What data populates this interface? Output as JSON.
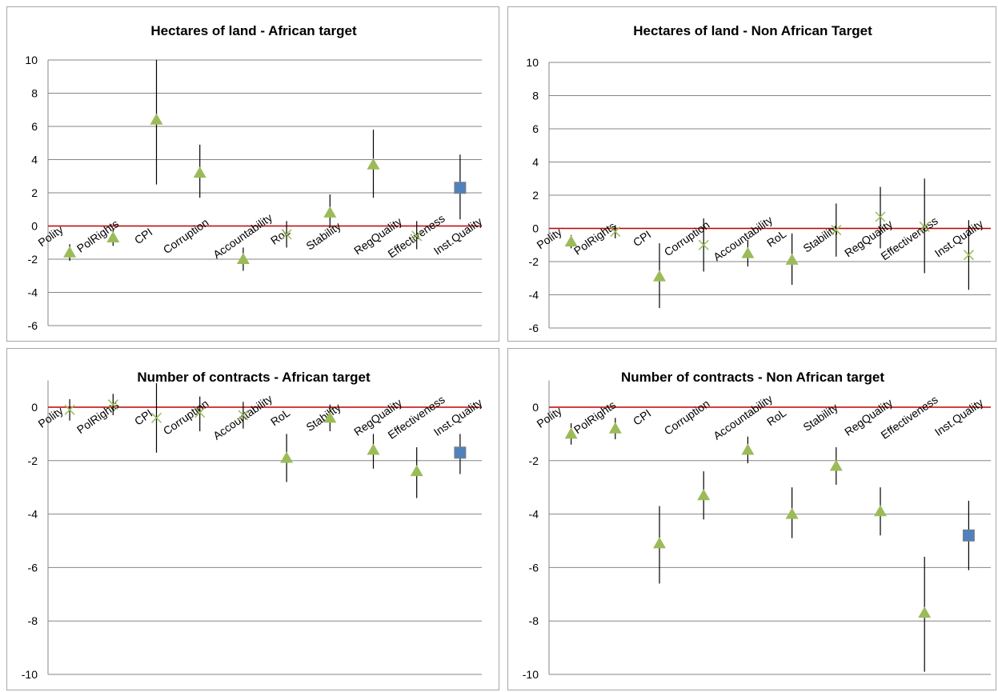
{
  "colors": {
    "triangle": "#9bbb59",
    "cross": "#9bbb59",
    "square": "#4f81bd",
    "square_edge": "#7f7f7f",
    "zero_line": "#c00000",
    "grid": "#868686",
    "errorbar": "#000000"
  },
  "chart_data": [
    {
      "type": "scatter",
      "title": "Hectares of land - African target",
      "ylim": [
        -6,
        10
      ],
      "yticks": [
        10,
        8,
        6,
        4,
        2,
        0,
        -2,
        -4,
        -6
      ],
      "grid": true,
      "categories": [
        "Polity",
        "PolRights",
        "CPI",
        "Corruption",
        "Accountability",
        "RoL",
        "Stability",
        "RegQuality",
        "Effectiveness",
        "Inst.Quality"
      ],
      "values": [
        -1.6,
        -0.7,
        6.4,
        3.2,
        -2.0,
        -0.5,
        0.8,
        3.7,
        -0.6,
        2.3
      ],
      "lower": [
        -2.1,
        -1.2,
        2.5,
        1.7,
        -2.7,
        -1.3,
        -0.1,
        1.7,
        -1.4,
        0.4
      ],
      "upper": [
        -1.1,
        -0.2,
        10.0,
        4.9,
        -1.3,
        0.3,
        1.9,
        5.8,
        0.3,
        4.3
      ],
      "markers": [
        "triangle",
        "triangle",
        "triangle",
        "triangle",
        "triangle",
        "cross",
        "triangle",
        "triangle",
        "cross",
        "square"
      ]
    },
    {
      "type": "scatter",
      "title": "Hectares of land - Non African Target",
      "ylim": [
        -6,
        10
      ],
      "yticks": [
        10,
        8,
        6,
        4,
        2,
        0,
        -2,
        -4,
        -6
      ],
      "grid": true,
      "categories": [
        "Polity",
        "PolRights",
        "CPI",
        "Corruption",
        "Accountability",
        "RoL",
        "Stability",
        "RegQuality",
        "Effectiveness",
        "Inst.Quality"
      ],
      "values": [
        -0.8,
        -0.2,
        -2.9,
        -1.0,
        -1.5,
        -1.9,
        -0.1,
        0.7,
        0.1,
        -1.6
      ],
      "lower": [
        -1.2,
        -0.6,
        -4.8,
        -2.6,
        -2.3,
        -3.4,
        -1.7,
        -1.2,
        -2.7,
        -3.7
      ],
      "upper": [
        -0.4,
        0.2,
        -0.9,
        0.6,
        -0.7,
        -0.3,
        1.5,
        2.5,
        3.0,
        0.5
      ],
      "markers": [
        "triangle",
        "cross",
        "triangle",
        "cross",
        "triangle",
        "triangle",
        "cross",
        "cross",
        "cross",
        "cross"
      ]
    },
    {
      "type": "scatter",
      "title": "Number of contracts  - African target",
      "ylim": [
        -10,
        1
      ],
      "yticks": [
        0,
        -2,
        -4,
        -6,
        -8,
        -10
      ],
      "grid": true,
      "categories": [
        "Polity",
        "PolRights",
        "CPI",
        "Corruption",
        "Accountability",
        "RoL",
        "Stability",
        "RegQuality",
        "Effectiveness",
        "Inst.Quality"
      ],
      "values": [
        -0.1,
        0.1,
        -0.4,
        -0.2,
        -0.3,
        -1.9,
        -0.4,
        -1.6,
        -2.4,
        -1.7
      ],
      "lower": [
        -0.5,
        -0.3,
        -1.7,
        -0.9,
        -0.8,
        -2.8,
        -0.9,
        -2.3,
        -3.4,
        -2.5
      ],
      "upper": [
        0.3,
        0.5,
        0.9,
        0.4,
        0.2,
        -1.0,
        0.1,
        -1.0,
        -1.5,
        -1.0
      ],
      "markers": [
        "cross",
        "cross",
        "cross",
        "cross",
        "cross",
        "triangle",
        "triangle",
        "triangle",
        "triangle",
        "square"
      ]
    },
    {
      "type": "scatter",
      "title": "Number of contracts  - Non African target",
      "ylim": [
        -10,
        1
      ],
      "yticks": [
        0,
        -2,
        -4,
        -6,
        -8,
        -10
      ],
      "grid": true,
      "categories": [
        "Polity",
        "PolRights",
        "CPI",
        "Corruption",
        "Accountability",
        "RoL",
        "Stability",
        "RegQuality",
        "Effectiveness",
        "Inst.Quality"
      ],
      "values": [
        -1.0,
        -0.8,
        -5.1,
        -3.3,
        -1.6,
        -4.0,
        -2.2,
        -3.9,
        -7.7,
        -4.8
      ],
      "lower": [
        -1.4,
        -1.2,
        -6.6,
        -4.2,
        -2.1,
        -4.9,
        -2.9,
        -4.8,
        -9.9,
        -6.1
      ],
      "upper": [
        -0.6,
        -0.4,
        -3.7,
        -2.4,
        -1.1,
        -3.0,
        -1.5,
        -3.0,
        -5.6,
        -3.5
      ],
      "markers": [
        "triangle",
        "triangle",
        "triangle",
        "triangle",
        "triangle",
        "triangle",
        "triangle",
        "triangle",
        "triangle",
        "square"
      ]
    }
  ]
}
